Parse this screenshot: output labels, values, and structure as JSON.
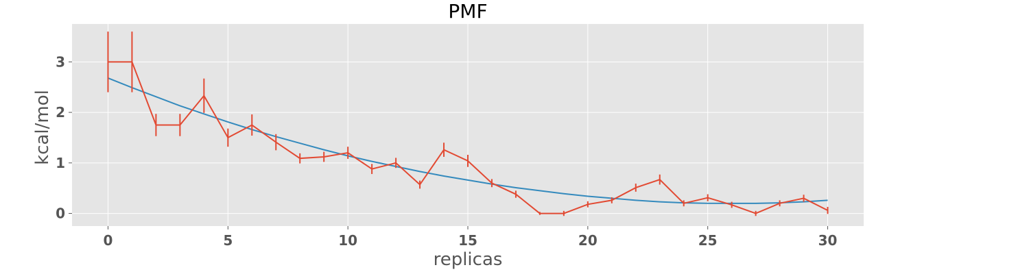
{
  "chart_data": {
    "type": "line",
    "title": "PMF",
    "xlabel": "replicas",
    "ylabel": "kcal/mol",
    "xlim": [
      -1.5,
      31.5
    ],
    "ylim": [
      -0.25,
      3.75
    ],
    "xticks": [
      0,
      5,
      10,
      15,
      20,
      25,
      30
    ],
    "yticks": [
      0,
      1,
      2,
      3
    ],
    "grid": true,
    "background": "#e5e5e5",
    "series": [
      {
        "kind": "errorbar",
        "color": "#e24a33",
        "x": [
          0,
          1,
          2,
          3,
          4,
          5,
          6,
          7,
          8,
          9,
          10,
          11,
          12,
          13,
          14,
          15,
          16,
          17,
          18,
          19,
          20,
          21,
          22,
          23,
          24,
          25,
          26,
          27,
          28,
          29,
          30
        ],
        "y": [
          3.0,
          3.0,
          1.75,
          1.75,
          2.33,
          1.5,
          1.75,
          1.41,
          1.09,
          1.12,
          1.2,
          0.88,
          1.0,
          0.57,
          1.26,
          1.04,
          0.6,
          0.38,
          0.0,
          0.0,
          0.18,
          0.26,
          0.51,
          0.67,
          0.2,
          0.31,
          0.17,
          0.0,
          0.2,
          0.3,
          0.06
        ],
        "yerr": [
          0.6,
          0.6,
          0.22,
          0.22,
          0.34,
          0.18,
          0.21,
          0.16,
          0.1,
          0.1,
          0.12,
          0.1,
          0.1,
          0.08,
          0.14,
          0.12,
          0.08,
          0.07,
          0.03,
          0.05,
          0.06,
          0.06,
          0.08,
          0.1,
          0.06,
          0.07,
          0.06,
          0.05,
          0.06,
          0.07,
          0.07
        ]
      },
      {
        "kind": "fit",
        "color": "#348abd",
        "x": [
          0,
          1,
          2,
          3,
          4,
          5,
          6,
          7,
          8,
          9,
          10,
          11,
          12,
          13,
          14,
          15,
          16,
          17,
          18,
          19,
          20,
          21,
          22,
          23,
          24,
          25,
          26,
          27,
          28,
          29,
          30
        ],
        "y": [
          2.68,
          2.49,
          2.31,
          2.13,
          1.97,
          1.81,
          1.66,
          1.52,
          1.39,
          1.26,
          1.14,
          1.03,
          0.93,
          0.83,
          0.74,
          0.66,
          0.58,
          0.51,
          0.45,
          0.39,
          0.34,
          0.3,
          0.26,
          0.23,
          0.21,
          0.2,
          0.2,
          0.2,
          0.21,
          0.23,
          0.26
        ]
      }
    ]
  }
}
